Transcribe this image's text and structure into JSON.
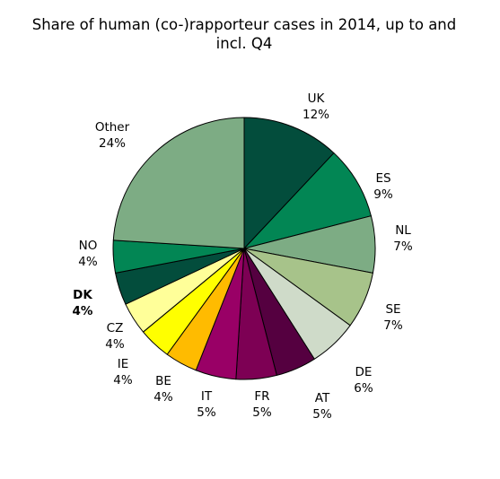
{
  "chart_data": {
    "type": "pie",
    "title_line1": "Share of human (co-)rapporteur cases in 2014, up to and",
    "title_line2": "incl. Q4",
    "slices": [
      {
        "label": "UK",
        "value": 12,
        "value_label": "12%",
        "color": "#034d3c"
      },
      {
        "label": "ES",
        "value": 9,
        "value_label": "9%",
        "color": "#028654"
      },
      {
        "label": "NL",
        "value": 7,
        "value_label": "7%",
        "color": "#7dac84"
      },
      {
        "label": "SE",
        "value": 7,
        "value_label": "7%",
        "color": "#a7c38a"
      },
      {
        "label": "DE",
        "value": 6,
        "value_label": "6%",
        "color": "#cfdbc9"
      },
      {
        "label": "AT",
        "value": 5,
        "value_label": "5%",
        "color": "#550040"
      },
      {
        "label": "FR",
        "value": 5,
        "value_label": "5%",
        "color": "#7d0054"
      },
      {
        "label": "IT",
        "value": 5,
        "value_label": "5%",
        "color": "#990066"
      },
      {
        "label": "BE",
        "value": 4,
        "value_label": "4%",
        "color": "#ffbb00"
      },
      {
        "label": "IE",
        "value": 4,
        "value_label": "4%",
        "color": "#ffff00"
      },
      {
        "label": "CZ",
        "value": 4,
        "value_label": "4%",
        "color": "#ffff99"
      },
      {
        "label": "DK",
        "value": 4,
        "value_label": "4%",
        "color": "#034d3c",
        "bold": true
      },
      {
        "label": "NO",
        "value": 4,
        "value_label": "4%",
        "color": "#028654"
      },
      {
        "label": "Other",
        "value": 24,
        "value_label": "24%",
        "color": "#7dac84"
      }
    ]
  }
}
